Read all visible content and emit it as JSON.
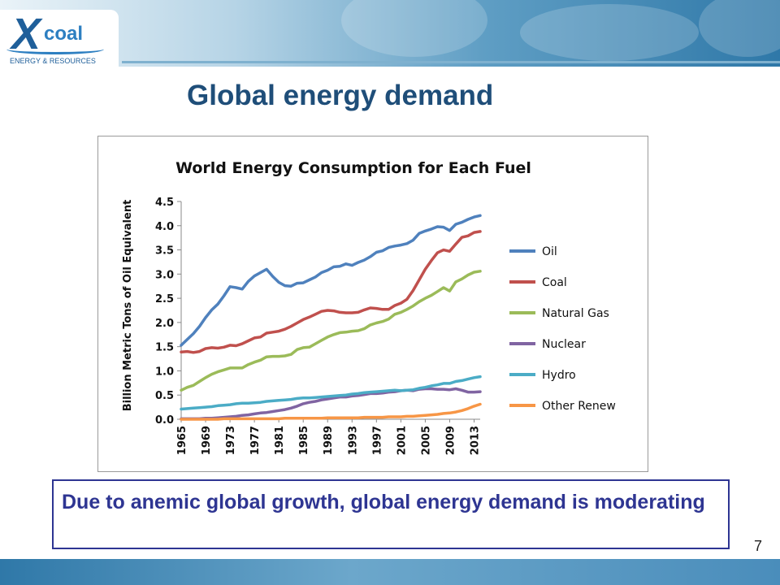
{
  "brand": {
    "logo_mark": "X",
    "logo_word": "coal",
    "logo_tagline": "ENERGY & RESOURCES"
  },
  "slide": {
    "title": "Global energy demand",
    "callout": "Due to anemic global growth, global energy demand is moderating",
    "page_number": "7"
  },
  "colors": {
    "title": "#1f4e79",
    "callout": "#2e3592",
    "header_accent": "#2f78a8"
  },
  "chart_data": {
    "type": "line",
    "title": "World Energy Consumption for Each Fuel",
    "ylabel": "Billion Metric Tons of Oil Equivalent",
    "xlabel": "",
    "ylim": [
      0,
      4.5
    ],
    "yticks": [
      "0.0",
      "0.5",
      "1.0",
      "1.5",
      "2.0",
      "2.5",
      "3.0",
      "3.5",
      "4.0",
      "4.5"
    ],
    "xticks": [
      "1965",
      "1969",
      "1973",
      "1977",
      "1981",
      "1985",
      "1989",
      "1993",
      "1997",
      "2001",
      "2005",
      "2009",
      "2013"
    ],
    "x": [
      1965,
      1966,
      1967,
      1968,
      1969,
      1970,
      1971,
      1972,
      1973,
      1974,
      1975,
      1976,
      1977,
      1978,
      1979,
      1980,
      1981,
      1982,
      1983,
      1984,
      1985,
      1986,
      1987,
      1988,
      1989,
      1990,
      1991,
      1992,
      1993,
      1994,
      1995,
      1996,
      1997,
      1998,
      1999,
      2000,
      2001,
      2002,
      2003,
      2004,
      2005,
      2006,
      2007,
      2008,
      2009,
      2010,
      2011,
      2012,
      2013,
      2014
    ],
    "grid": false,
    "legend": "right",
    "series": [
      {
        "name": "Oil",
        "color": "#4f81bd",
        "values": [
          1.53,
          1.65,
          1.77,
          1.92,
          2.1,
          2.26,
          2.38,
          2.55,
          2.74,
          2.72,
          2.69,
          2.85,
          2.96,
          3.03,
          3.1,
          2.95,
          2.83,
          2.76,
          2.75,
          2.81,
          2.82,
          2.88,
          2.94,
          3.03,
          3.08,
          3.15,
          3.16,
          3.21,
          3.18,
          3.24,
          3.29,
          3.36,
          3.45,
          3.48,
          3.55,
          3.58,
          3.6,
          3.63,
          3.7,
          3.84,
          3.89,
          3.93,
          3.98,
          3.97,
          3.9,
          4.03,
          4.07,
          4.13,
          4.18,
          4.21
        ]
      },
      {
        "name": "Coal",
        "color": "#c0504d",
        "values": [
          1.39,
          1.4,
          1.38,
          1.4,
          1.46,
          1.48,
          1.47,
          1.49,
          1.53,
          1.52,
          1.56,
          1.62,
          1.68,
          1.7,
          1.78,
          1.8,
          1.82,
          1.86,
          1.92,
          1.99,
          2.06,
          2.11,
          2.17,
          2.23,
          2.25,
          2.24,
          2.21,
          2.2,
          2.2,
          2.21,
          2.26,
          2.3,
          2.29,
          2.27,
          2.27,
          2.35,
          2.4,
          2.48,
          2.66,
          2.88,
          3.1,
          3.28,
          3.44,
          3.5,
          3.47,
          3.62,
          3.76,
          3.79,
          3.86,
          3.88
        ]
      },
      {
        "name": "Natural Gas",
        "color": "#9bbb59",
        "values": [
          0.6,
          0.66,
          0.7,
          0.78,
          0.86,
          0.93,
          0.98,
          1.02,
          1.06,
          1.06,
          1.06,
          1.13,
          1.18,
          1.22,
          1.29,
          1.3,
          1.3,
          1.31,
          1.34,
          1.44,
          1.48,
          1.49,
          1.56,
          1.63,
          1.7,
          1.75,
          1.79,
          1.8,
          1.82,
          1.83,
          1.87,
          1.95,
          1.99,
          2.02,
          2.07,
          2.17,
          2.21,
          2.27,
          2.34,
          2.43,
          2.5,
          2.56,
          2.64,
          2.72,
          2.65,
          2.84,
          2.9,
          2.98,
          3.04,
          3.06
        ]
      },
      {
        "name": "Nuclear",
        "color": "#8064a2",
        "values": [
          0.01,
          0.01,
          0.01,
          0.01,
          0.02,
          0.02,
          0.03,
          0.04,
          0.05,
          0.06,
          0.08,
          0.09,
          0.11,
          0.13,
          0.14,
          0.16,
          0.18,
          0.2,
          0.23,
          0.27,
          0.32,
          0.35,
          0.37,
          0.4,
          0.42,
          0.44,
          0.46,
          0.46,
          0.48,
          0.49,
          0.51,
          0.53,
          0.53,
          0.54,
          0.56,
          0.57,
          0.59,
          0.6,
          0.59,
          0.62,
          0.63,
          0.63,
          0.62,
          0.62,
          0.61,
          0.63,
          0.6,
          0.56,
          0.56,
          0.57
        ]
      },
      {
        "name": "Hydro",
        "color": "#4bacc6",
        "values": [
          0.21,
          0.22,
          0.23,
          0.24,
          0.25,
          0.26,
          0.28,
          0.29,
          0.3,
          0.32,
          0.33,
          0.33,
          0.34,
          0.35,
          0.37,
          0.38,
          0.39,
          0.4,
          0.41,
          0.43,
          0.44,
          0.44,
          0.45,
          0.46,
          0.47,
          0.48,
          0.49,
          0.5,
          0.52,
          0.53,
          0.55,
          0.56,
          0.57,
          0.58,
          0.59,
          0.6,
          0.59,
          0.6,
          0.61,
          0.64,
          0.66,
          0.69,
          0.71,
          0.74,
          0.74,
          0.78,
          0.8,
          0.83,
          0.86,
          0.88
        ]
      },
      {
        "name": "Other Renew",
        "color": "#f79646",
        "values": [
          0.0,
          0.0,
          0.0,
          0.0,
          0.0,
          0.0,
          0.0,
          0.01,
          0.01,
          0.01,
          0.01,
          0.01,
          0.01,
          0.01,
          0.01,
          0.01,
          0.01,
          0.02,
          0.02,
          0.02,
          0.02,
          0.02,
          0.02,
          0.02,
          0.03,
          0.03,
          0.03,
          0.03,
          0.03,
          0.03,
          0.04,
          0.04,
          0.04,
          0.04,
          0.05,
          0.05,
          0.05,
          0.06,
          0.06,
          0.07,
          0.08,
          0.09,
          0.1,
          0.12,
          0.13,
          0.15,
          0.18,
          0.22,
          0.27,
          0.31
        ]
      }
    ]
  }
}
